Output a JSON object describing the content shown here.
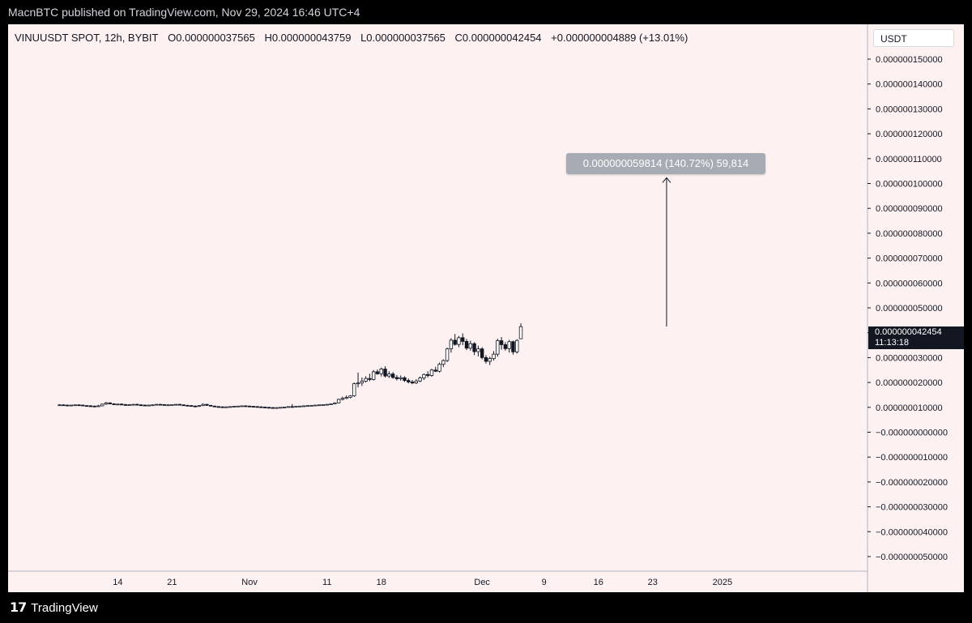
{
  "header": {
    "published": "MacnBTC published on TradingView.com, Nov 29, 2024 16:46 UTC+4"
  },
  "symbol": {
    "name": "VINUUSDT SPOT, 12h, BYBIT",
    "open": "O0.000000037565",
    "high": "H0.000000043759",
    "low": "L0.000000037565",
    "close": "C0.000000042454",
    "change": "+0.000000004889 (+13.01%)"
  },
  "currency": "USDT",
  "measure": {
    "label": "0.000000059814 (140.72%) 59,814"
  },
  "last_price": {
    "value": "0.000000042454",
    "countdown": "11:13:18"
  },
  "footer": {
    "brand": "TradingView"
  },
  "colors": {
    "background": "#fdf1f2",
    "candle": "#131722",
    "up_fill": "#ffffff",
    "axis_text": "#131722",
    "measure_bg": "#a7abb3"
  },
  "chart_data": {
    "type": "candlestick",
    "title": "VINUUSDT SPOT, 12h, BYBIT",
    "ylabel": "USDT",
    "ylim": [
      -5e-08,
      1.55e-07
    ],
    "y_ticks": [
      "0.000000150000",
      "0.000000140000",
      "0.000000130000",
      "0.000000120000",
      "0.000000110000",
      "0.000000100000",
      "0.000000090000",
      "0.000000080000",
      "0.000000070000",
      "0.000000060000",
      "0.000000050000",
      "0.000000040000",
      "0.000000030000",
      "0.000000020000",
      "0.000000010000",
      "−0.000000000000",
      "−0.000000010000",
      "−0.000000020000",
      "−0.000000030000",
      "−0.000000040000",
      "−0.000000050000"
    ],
    "y_tick_values": [
      150,
      140,
      130,
      120,
      110,
      100,
      90,
      80,
      70,
      60,
      50,
      40,
      30,
      20,
      10,
      0,
      -10,
      -20,
      -30,
      -40,
      -50
    ],
    "x_ticks": [
      "14",
      "21",
      "Nov",
      "11",
      "18",
      "Dec",
      "9",
      "16",
      "23",
      "2025"
    ],
    "x_tick_days": [
      14,
      21,
      31,
      41,
      48,
      61,
      69,
      76,
      83,
      92
    ],
    "x_unit": "day number from Oct 1, 2024 (12h candles)",
    "candles_scale": "1e-9 USDT",
    "candles": [
      [
        6.5,
        11,
        11.3,
        10.6,
        11
      ],
      [
        7,
        11,
        11.2,
        10.8,
        10.9
      ],
      [
        7.5,
        10.9,
        11.1,
        10.6,
        10.8
      ],
      [
        8,
        10.8,
        11,
        10.5,
        10.9
      ],
      [
        8.5,
        10.9,
        11.1,
        10.7,
        11
      ],
      [
        9,
        11,
        11.2,
        10.8,
        10.9
      ],
      [
        9.5,
        10.9,
        11.1,
        10.6,
        10.7
      ],
      [
        10,
        10.7,
        10.9,
        10.4,
        10.6
      ],
      [
        10.5,
        10.6,
        10.9,
        10.3,
        10.5
      ],
      [
        11,
        10.5,
        10.7,
        10.2,
        10.4
      ],
      [
        11.5,
        10.4,
        11,
        10.2,
        10.6
      ],
      [
        12,
        10.6,
        11.5,
        10.4,
        11.3
      ],
      [
        12.5,
        11.3,
        12.2,
        11,
        11.8
      ],
      [
        13,
        11.8,
        12,
        11.2,
        11.4
      ],
      [
        13.5,
        11.4,
        11.7,
        11,
        11.2
      ],
      [
        14,
        11.2,
        11.5,
        10.9,
        11.3
      ],
      [
        14.5,
        11.3,
        11.6,
        11,
        11.1
      ],
      [
        15,
        11.1,
        11.4,
        10.8,
        11
      ],
      [
        15.5,
        11,
        11.3,
        10.7,
        11.1
      ],
      [
        16,
        11.1,
        11.4,
        10.9,
        11.2
      ],
      [
        16.5,
        11.2,
        11.5,
        10.9,
        11
      ],
      [
        17,
        11,
        11.3,
        10.7,
        10.9
      ],
      [
        17.5,
        10.9,
        11.1,
        10.6,
        10.8
      ],
      [
        18,
        10.8,
        11,
        10.5,
        10.9
      ],
      [
        18.5,
        10.9,
        11.2,
        10.7,
        11
      ],
      [
        19,
        11,
        11.3,
        10.8,
        11.2
      ],
      [
        19.5,
        11.2,
        11.4,
        10.9,
        11.1
      ],
      [
        20,
        11.1,
        11.3,
        10.8,
        10.9
      ],
      [
        20.5,
        10.9,
        11.2,
        10.7,
        11
      ],
      [
        21,
        11,
        11.2,
        10.8,
        11.1
      ],
      [
        21.5,
        11.1,
        11.3,
        10.9,
        11.2
      ],
      [
        22,
        11.2,
        11.4,
        10.9,
        11
      ],
      [
        22.5,
        11,
        11.2,
        10.7,
        10.8
      ],
      [
        23,
        10.8,
        11,
        10.5,
        10.7
      ],
      [
        23.5,
        10.7,
        10.9,
        10.3,
        10.5
      ],
      [
        24,
        10.5,
        10.8,
        10.2,
        10.4
      ],
      [
        24.5,
        10.4,
        10.9,
        10.2,
        10.7
      ],
      [
        25,
        10.7,
        11.6,
        10.5,
        11.2
      ],
      [
        25.5,
        11.2,
        11.4,
        10.6,
        10.8
      ],
      [
        26,
        10.8,
        11,
        10.4,
        10.5
      ],
      [
        26.5,
        10.5,
        10.7,
        10.1,
        10.3
      ],
      [
        27,
        10.3,
        10.5,
        10,
        10.2
      ],
      [
        27.5,
        10.2,
        10.4,
        9.9,
        10.1
      ],
      [
        28,
        10.1,
        10.3,
        9.9,
        10.2
      ],
      [
        28.5,
        10.2,
        10.4,
        10,
        10.3
      ],
      [
        29,
        10.3,
        10.5,
        10.1,
        10.4
      ],
      [
        29.5,
        10.4,
        10.6,
        10.2,
        10.5
      ],
      [
        30,
        10.5,
        10.7,
        10.3,
        10.6
      ],
      [
        30.5,
        10.6,
        10.8,
        10.4,
        10.5
      ],
      [
        31,
        10.5,
        10.7,
        10.3,
        10.4
      ],
      [
        31.5,
        10.4,
        10.6,
        10.1,
        10.3
      ],
      [
        32,
        10.3,
        10.5,
        10,
        10.2
      ],
      [
        32.5,
        10.2,
        10.4,
        9.9,
        10.1
      ],
      [
        33,
        10.1,
        10.3,
        9.8,
        10
      ],
      [
        33.5,
        10,
        10.2,
        9.7,
        9.9
      ],
      [
        34,
        9.9,
        10.1,
        9.6,
        9.8
      ],
      [
        34.5,
        9.8,
        10,
        9.6,
        9.9
      ],
      [
        35,
        9.9,
        10.1,
        9.7,
        10
      ],
      [
        35.5,
        10,
        10.2,
        9.8,
        10.1
      ],
      [
        36,
        10.1,
        10.3,
        9.9,
        10.3
      ],
      [
        36.5,
        10.3,
        11.3,
        10.1,
        10.2
      ],
      [
        37,
        10.2,
        10.5,
        10,
        10.4
      ],
      [
        37.5,
        10.4,
        10.6,
        10.2,
        10.5
      ],
      [
        38,
        10.5,
        10.7,
        10.3,
        10.6
      ],
      [
        38.5,
        10.6,
        10.8,
        10.4,
        10.7
      ],
      [
        39,
        10.7,
        10.9,
        10.5,
        10.8
      ],
      [
        39.5,
        10.8,
        11,
        10.6,
        10.9
      ],
      [
        40,
        10.9,
        11.1,
        10.6,
        11
      ],
      [
        40.5,
        11,
        11.2,
        10.7,
        11.1
      ],
      [
        41,
        11.1,
        11.3,
        10.9,
        11.2
      ],
      [
        41.5,
        11.2,
        11.5,
        11,
        11.4
      ],
      [
        42,
        11.4,
        12,
        11.2,
        11.8
      ],
      [
        42.5,
        11.8,
        13.5,
        11.6,
        13.2
      ],
      [
        43,
        13.2,
        14.3,
        12.8,
        13.6
      ],
      [
        43.5,
        13.6,
        14.8,
        13.3,
        14
      ],
      [
        44,
        14,
        14.9,
        13.6,
        14.6
      ],
      [
        44.5,
        14.6,
        20,
        14.2,
        19.5
      ],
      [
        45,
        19.5,
        24,
        18,
        19.8
      ],
      [
        45.5,
        19.8,
        22,
        18.6,
        20.5
      ],
      [
        46,
        20.5,
        22.5,
        20,
        21.6
      ],
      [
        46.5,
        21.6,
        23.5,
        20.5,
        21.2
      ],
      [
        47,
        21.2,
        25,
        20.8,
        24.3
      ],
      [
        47.5,
        24.3,
        25.2,
        23.1,
        23.5
      ],
      [
        48,
        23.5,
        26,
        22.4,
        25.4
      ],
      [
        48.5,
        25.4,
        26.5,
        22,
        22.6
      ],
      [
        49,
        22.6,
        24.5,
        21.8,
        23.4
      ],
      [
        49.5,
        23.4,
        24.2,
        21.5,
        22
      ],
      [
        50,
        22,
        23,
        20.8,
        21.5
      ],
      [
        50.5,
        21.5,
        22.8,
        20.7,
        21.9
      ],
      [
        51,
        21.9,
        22.5,
        20.2,
        20.8
      ],
      [
        51.5,
        20.8,
        21.6,
        19.6,
        20.2
      ],
      [
        52,
        20.2,
        21,
        19.3,
        19.8
      ],
      [
        52.5,
        19.8,
        21.3,
        19.4,
        20.6
      ],
      [
        53,
        20.6,
        22.4,
        20.1,
        21.8
      ],
      [
        53.5,
        21.8,
        23.6,
        21,
        23.2
      ],
      [
        54,
        23.2,
        24.5,
        22,
        22.8
      ],
      [
        54.5,
        22.8,
        25.5,
        22.3,
        25
      ],
      [
        55,
        25,
        26.3,
        24.2,
        24.5
      ],
      [
        55.5,
        24.5,
        28,
        24,
        27.3
      ],
      [
        56,
        27.3,
        29.3,
        26.2,
        28.8
      ],
      [
        56.5,
        28.8,
        34,
        28.2,
        33.5
      ],
      [
        57,
        33.5,
        37.8,
        32,
        37
      ],
      [
        57.5,
        37,
        39.5,
        34.8,
        35.3
      ],
      [
        58,
        35.3,
        38.7,
        34.2,
        38
      ],
      [
        58.5,
        38,
        39.7,
        35,
        36.5
      ],
      [
        59,
        36.5,
        37.5,
        33,
        33.8
      ],
      [
        59.5,
        33.8,
        36.8,
        32.8,
        35.6
      ],
      [
        60,
        35.6,
        36.2,
        31,
        32.4
      ],
      [
        60.5,
        32.4,
        34.8,
        30.5,
        33.5
      ],
      [
        61,
        33.5,
        34.2,
        29.3,
        30
      ],
      [
        61.5,
        30,
        31,
        27.6,
        28.5
      ],
      [
        62,
        28.5,
        30.4,
        27,
        29.6
      ],
      [
        62.5,
        29.6,
        32.6,
        28.8,
        31.4
      ],
      [
        63,
        31.4,
        37.6,
        30.4,
        36.8
      ],
      [
        63.5,
        36.8,
        38.3,
        33.2,
        35.2
      ],
      [
        64,
        35.2,
        36.2,
        32.8,
        33.6
      ],
      [
        64.5,
        33.6,
        37.1,
        32,
        36.4
      ],
      [
        65,
        36.4,
        36.8,
        31.2,
        32.3
      ],
      [
        65.5,
        32.3,
        37.4,
        31.6,
        36.9
      ],
      [
        66,
        37.57,
        43.76,
        37.57,
        42.45
      ]
    ]
  }
}
